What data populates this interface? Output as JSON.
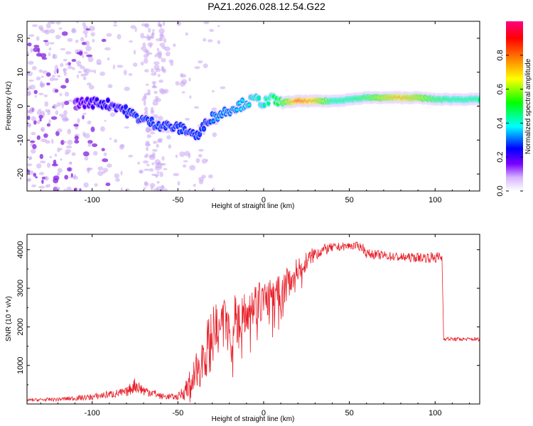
{
  "title": "PAZ1.2026.028.12.54.G22",
  "chart_data": [
    {
      "type": "heatmap",
      "name": "spectrogram",
      "xlabel": "Height of straight line (km)",
      "ylabel": "Frequency (Hz)",
      "xlim": [
        -138,
        126
      ],
      "ylim": [
        -25,
        25
      ],
      "xticks": [
        -100,
        -50,
        0,
        50,
        100
      ],
      "yticks": [
        -20,
        -10,
        0,
        10,
        20
      ],
      "colorbar": {
        "label": "Normalized spectral amplitude",
        "range": [
          0,
          1
        ],
        "ticks": [
          0.0,
          0.2,
          0.4,
          0.6,
          0.8
        ],
        "colormap": [
          "#ffffff",
          "#d6b4ff",
          "#7a00ff",
          "#0000ff",
          "#00ffff",
          "#00ff00",
          "#ffff00",
          "#ff8000",
          "#ff0000",
          "#ff0080"
        ]
      },
      "ridge": {
        "x": [
          -105,
          -95,
          -85,
          -75,
          -65,
          -55,
          -45,
          -38,
          -33,
          -28,
          -20,
          -10,
          -5,
          0,
          5,
          10,
          20,
          30,
          40,
          50,
          60,
          70,
          80,
          90,
          100,
          110,
          126
        ],
        "y": [
          1,
          1,
          0,
          -3,
          -5,
          -6,
          -7,
          -9,
          -4,
          -3,
          -1,
          1,
          2,
          1,
          2,
          1,
          1.5,
          1.5,
          1.5,
          2,
          2.5,
          2.5,
          2.5,
          2.5,
          2,
          2,
          2
        ],
        "amplitude": [
          0.2,
          0.25,
          0.25,
          0.3,
          0.3,
          0.3,
          0.3,
          0.3,
          0.3,
          0.35,
          0.35,
          0.4,
          0.45,
          0.45,
          0.5,
          0.55,
          0.9,
          0.8,
          0.5,
          0.5,
          0.55,
          0.7,
          0.8,
          0.7,
          0.55,
          0.5,
          0.5
        ]
      }
    },
    {
      "type": "line",
      "name": "snr",
      "xlabel": "Height of straight line (km)",
      "ylabel": "SNR (10 * v/v)",
      "xlim": [
        -138,
        126
      ],
      "ylim": [
        0,
        4400
      ],
      "xticks": [
        -100,
        -50,
        0,
        50,
        100
      ],
      "yticks": [
        1000,
        2000,
        3000,
        4000
      ],
      "color": "#e8202a",
      "x": [
        -138,
        -120,
        -100,
        -90,
        -80,
        -75,
        -70,
        -65,
        -60,
        -50,
        -45,
        -40,
        -35,
        -30,
        -25,
        -20,
        -15,
        -10,
        -5,
        0,
        5,
        10,
        15,
        20,
        25,
        30,
        35,
        40,
        50,
        55,
        58,
        60,
        70,
        80,
        90,
        100,
        104,
        105,
        110,
        126
      ],
      "y": [
        100,
        120,
        180,
        250,
        300,
        500,
        350,
        300,
        200,
        180,
        400,
        700,
        1300,
        1700,
        1900,
        2100,
        2300,
        2500,
        2600,
        2700,
        2800,
        2850,
        3200,
        3500,
        3700,
        3900,
        4000,
        4050,
        4100,
        4100,
        4050,
        3900,
        3850,
        3800,
        3800,
        3800,
        3800,
        1700,
        1680,
        1680
      ],
      "noise": [
        40,
        50,
        80,
        100,
        120,
        200,
        150,
        120,
        80,
        80,
        300,
        500,
        700,
        800,
        800,
        700,
        700,
        600,
        600,
        500,
        500,
        500,
        400,
        300,
        250,
        200,
        150,
        120,
        100,
        100,
        120,
        120,
        120,
        120,
        120,
        150,
        150,
        50,
        50,
        50
      ]
    }
  ]
}
